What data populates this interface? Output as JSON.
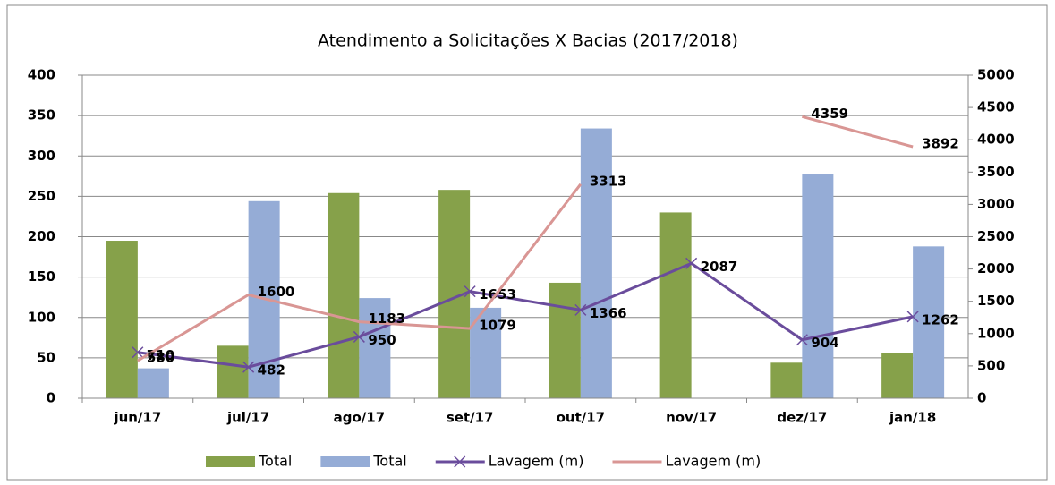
{
  "chart_data": {
    "type": "combo",
    "title": "Atendimento a Solicitações X Bacias (2017/2018)",
    "categories": [
      "jun/17",
      "jul/17",
      "ago/17",
      "set/17",
      "out/17",
      "nov/17",
      "dez/17",
      "jan/18"
    ],
    "series": [
      {
        "name": "Total",
        "type": "bar",
        "color": "#86a14a",
        "values": [
          195,
          65,
          254,
          258,
          143,
          230,
          44,
          56
        ]
      },
      {
        "name": "Total",
        "type": "bar",
        "color": "#95acd6",
        "values": [
          37,
          244,
          124,
          112,
          334,
          null,
          277,
          188
        ]
      },
      {
        "name": "Lavagem (m)",
        "type": "line",
        "axis": "y2",
        "color": "#6a4c9c",
        "marker": "x",
        "values": [
          710,
          482,
          950,
          1653,
          1366,
          2087,
          904,
          1262
        ]
      },
      {
        "name": "Lavagem (m)",
        "type": "line",
        "axis": "y2",
        "color": "#d99694",
        "values": [
          580,
          1600,
          1183,
          1079,
          3313,
          null,
          4359,
          3892
        ]
      }
    ],
    "ylim": [
      0,
      400
    ],
    "yticks": [
      0,
      50,
      100,
      150,
      200,
      250,
      300,
      350,
      400
    ],
    "y2lim": [
      0,
      5000
    ],
    "y2ticks": [
      0,
      500,
      1000,
      1500,
      2000,
      2500,
      3000,
      3500,
      4000,
      4500,
      5000
    ],
    "grid": true,
    "legend": "bottom"
  }
}
